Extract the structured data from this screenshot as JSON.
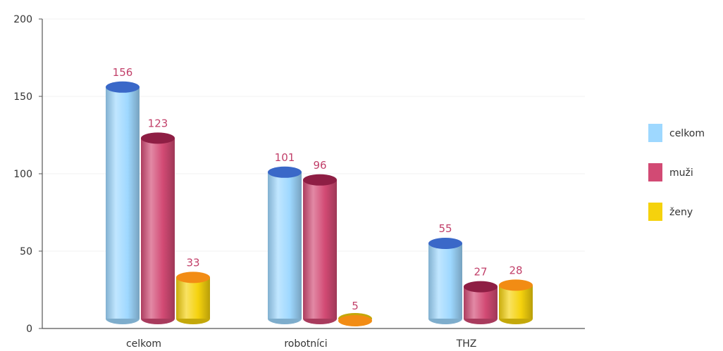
{
  "chart_data": {
    "type": "bar",
    "categories": [
      "celkom",
      "robotníci",
      "THZ"
    ],
    "series": [
      {
        "name": "celkom",
        "values": [
          156,
          101,
          55
        ],
        "color": "#9ed8ff",
        "top_color": "#3a68c8"
      },
      {
        "name": "muži",
        "values": [
          123,
          96,
          27
        ],
        "color": "#d24a74",
        "top_color": "#8e1e44"
      },
      {
        "name": "ženy",
        "values": [
          33,
          5,
          28
        ],
        "color": "#f5d20d",
        "top_color": "#f28c14"
      }
    ],
    "ylim": [
      0,
      200
    ],
    "yticks": [
      0,
      50,
      100,
      150,
      200
    ],
    "grid": true,
    "legend_position": "right",
    "data_label_color": "#c2406a",
    "title": "",
    "xlabel": "",
    "ylabel": ""
  }
}
